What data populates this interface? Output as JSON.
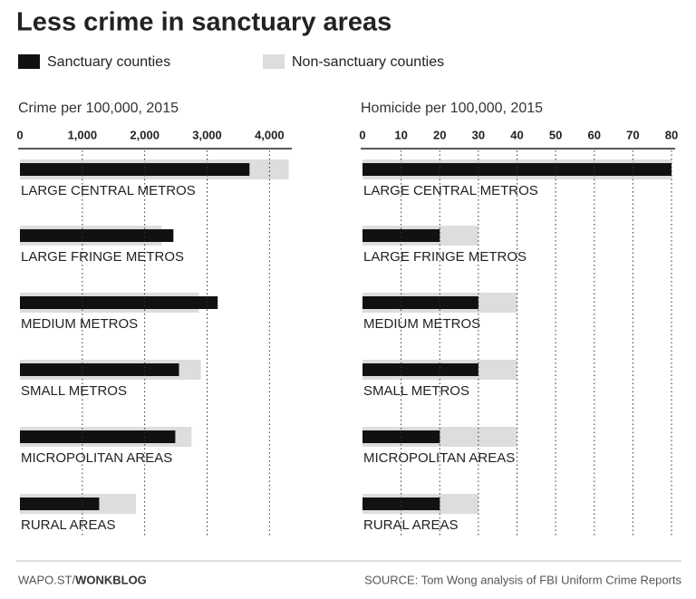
{
  "title": "Less crime in sanctuary areas",
  "footer": {
    "site": "WAPO.ST/",
    "blog": "WONKBLOG",
    "source": "SOURCE: Tom Wong analysis of FBI Uniform Crime Reports"
  },
  "chart_data": [
    {
      "type": "bar",
      "orientation": "horizontal",
      "subtitle": "Crime per 100,000, 2015",
      "categories": [
        "LARGE CENTRAL METROS",
        "LARGE FRINGE METROS",
        "MEDIUM METROS",
        "SMALL METROS",
        "MICROPOLITAN AREAS",
        "RURAL AREAS"
      ],
      "series": [
        {
          "name": "Sanctuary counties",
          "color": "#111111",
          "values": [
            3680,
            2460,
            3170,
            2550,
            2490,
            1270
          ]
        },
        {
          "name": "Non-sanctuary counties",
          "color": "#dddddd",
          "values": [
            4310,
            2270,
            2870,
            2900,
            2750,
            1860
          ]
        }
      ],
      "xlim": [
        0,
        4300
      ],
      "xticks": [
        0,
        {
          "value": 1000,
          "label": "1,000"
        },
        {
          "value": 2000,
          "label": "2,000"
        },
        {
          "value": 3000,
          "label": "3,000"
        },
        {
          "value": 4000,
          "label": "4,000"
        }
      ],
      "grid": true
    },
    {
      "type": "bar",
      "orientation": "horizontal",
      "subtitle": "Homicide per 100,000, 2015",
      "categories": [
        "LARGE CENTRAL METROS",
        "LARGE FRINGE METROS",
        "MEDIUM METROS",
        "SMALL METROS",
        "MICROPOLITAN AREAS",
        "RURAL AREAS"
      ],
      "series": [
        {
          "color": "#111111",
          "values": [
            80,
            20,
            30,
            30,
            20,
            20
          ]
        },
        {
          "color": "#dddddd",
          "values": [
            80,
            30,
            40,
            40,
            40,
            30
          ]
        }
      ],
      "xlim": [
        0,
        80
      ],
      "xticks": [
        0,
        10,
        20,
        30,
        40,
        50,
        60,
        70,
        80
      ],
      "grid": true
    }
  ]
}
